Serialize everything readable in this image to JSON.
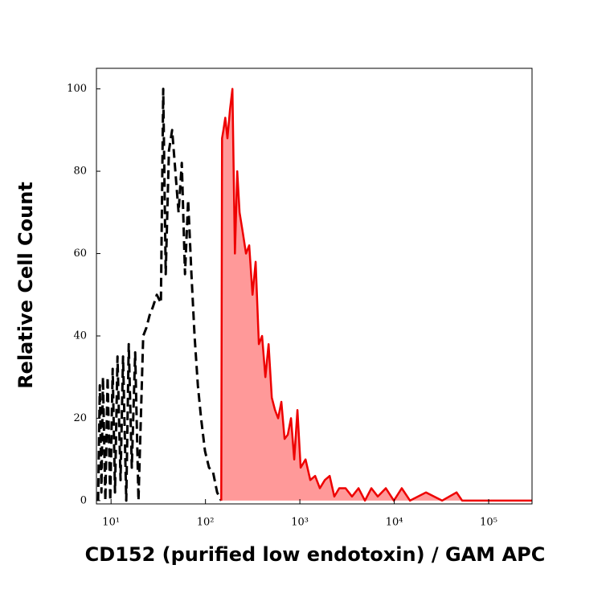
{
  "chart_data": {
    "type": "line",
    "x_scale": "log",
    "xlabel": "CD152 (purified low endotoxin) / GAM APC",
    "ylabel": "Relative Cell Count",
    "xlim": [
      7,
      288000
    ],
    "ylim": [
      -0.8,
      105
    ],
    "xticks": [
      {
        "value": 10,
        "label": "10¹"
      },
      {
        "value": 100,
        "label": "10²"
      },
      {
        "value": 1000,
        "label": "10³"
      },
      {
        "value": 10000,
        "label": "10⁴"
      },
      {
        "value": 100000,
        "label": "10⁵"
      }
    ],
    "yticks": [
      0,
      20,
      40,
      60,
      80,
      100
    ],
    "series": [
      {
        "color": "#000000",
        "dashed": true,
        "filled": false,
        "x": [
          7.3,
          7.6,
          7.9,
          8.2,
          8.7,
          9.2,
          9.8,
          10.4,
          11.0,
          11.7,
          12.6,
          13.4,
          14.5,
          15.4,
          16.6,
          18.0,
          19.5,
          21.9,
          23.7,
          25.6,
          27.7,
          30.5,
          33.7,
          35.7,
          37.9,
          41.0,
          44.4,
          48.0,
          51.9,
          56.1,
          60.7,
          65.6,
          71.0,
          76.7,
          83.0,
          89.8,
          99,
          109,
          120,
          133,
          147
        ],
        "values": [
          0,
          28,
          2,
          30,
          0,
          30,
          0,
          32,
          2,
          35,
          5,
          35,
          0,
          38,
          8,
          36,
          0,
          40,
          42,
          45,
          47,
          50,
          48,
          100,
          55,
          85,
          90,
          80,
          70,
          82,
          55,
          73,
          55,
          40,
          28,
          20,
          12,
          8,
          7,
          2,
          0
        ]
      },
      {
        "color": "#ee0000",
        "fill": "#ff9999",
        "dashed": false,
        "filled": true,
        "x": [
          147,
          150,
          155,
          162,
          171,
          182,
          193,
          205,
          217,
          230,
          249,
          269,
          291,
          315,
          340,
          368,
          398,
          431,
          466,
          504,
          545,
          589,
          637,
          689,
          745,
          806,
          871,
          942,
          1020,
          1150,
          1290,
          1450,
          1630,
          1840,
          2070,
          2320,
          2610,
          3050,
          3570,
          4180,
          4890,
          5720,
          6690,
          8140,
          9900,
          12000,
          14700,
          21700,
          32100,
          45700,
          52400,
          288000
        ],
        "values": [
          0,
          88,
          90,
          93,
          88,
          95,
          100,
          60,
          80,
          70,
          65,
          60,
          62,
          50,
          58,
          38,
          40,
          30,
          38,
          25,
          22,
          20,
          24,
          15,
          16,
          20,
          10,
          22,
          8,
          10,
          5,
          6,
          3,
          5,
          6,
          1,
          3,
          3,
          1,
          3,
          0,
          3,
          1,
          3,
          0,
          3,
          0,
          2,
          0,
          2,
          0,
          0
        ]
      }
    ]
  }
}
